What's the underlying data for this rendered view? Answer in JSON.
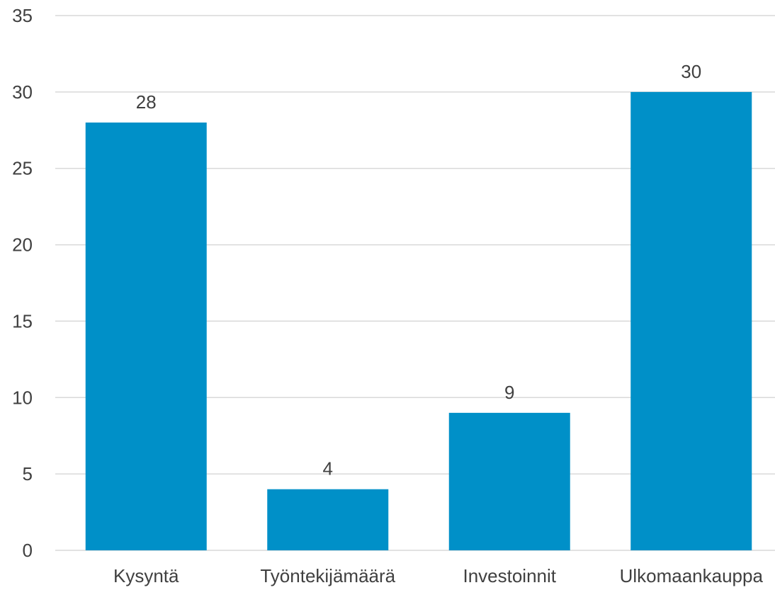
{
  "chart_data": {
    "type": "bar",
    "title": "",
    "xlabel": "",
    "ylabel": "",
    "categories": [
      "Kysyntä",
      "Työntekijämäärä",
      "Investoinnit",
      "Ulkomaankauppa"
    ],
    "values": [
      28,
      4,
      9,
      30
    ],
    "data_labels": [
      "28",
      "4",
      "9",
      "30"
    ],
    "ylim": [
      0,
      35
    ],
    "yticks": [
      0,
      5,
      10,
      15,
      20,
      25,
      30,
      35
    ],
    "ytick_labels": [
      "0",
      "5",
      "10",
      "15",
      "20",
      "25",
      "30",
      "35"
    ],
    "grid": true,
    "legend": "none",
    "bar_color": "#0090c8"
  }
}
